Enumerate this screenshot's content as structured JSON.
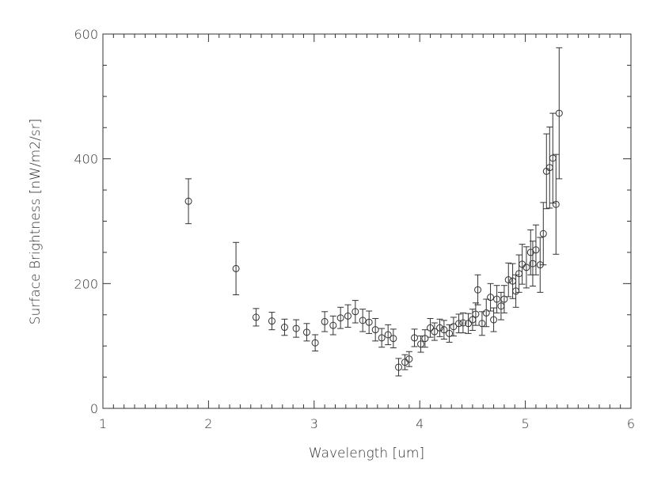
{
  "chart_data": {
    "type": "scatter",
    "title": "",
    "xlabel": "Wavelength [um]",
    "ylabel": "Surface Brightness [nW/m2/sr]",
    "xlim": [
      1,
      6
    ],
    "ylim": [
      0,
      600
    ],
    "xticks": [
      "1",
      "2",
      "3",
      "4",
      "5",
      "6"
    ],
    "yticks": [
      "0",
      "200",
      "400",
      "600"
    ],
    "grid": false,
    "marker": "open-circle",
    "error_bars": true,
    "color": "#333333",
    "points": [
      {
        "x": 1.81,
        "y": 332,
        "err": 36
      },
      {
        "x": 2.26,
        "y": 224,
        "err": 42
      },
      {
        "x": 2.45,
        "y": 146,
        "err": 14
      },
      {
        "x": 2.6,
        "y": 140,
        "err": 14
      },
      {
        "x": 2.72,
        "y": 130,
        "err": 13
      },
      {
        "x": 2.83,
        "y": 128,
        "err": 14
      },
      {
        "x": 2.93,
        "y": 122,
        "err": 14
      },
      {
        "x": 3.01,
        "y": 105,
        "err": 13
      },
      {
        "x": 3.1,
        "y": 139,
        "err": 16
      },
      {
        "x": 3.18,
        "y": 133,
        "err": 15
      },
      {
        "x": 3.25,
        "y": 145,
        "err": 17
      },
      {
        "x": 3.32,
        "y": 148,
        "err": 18
      },
      {
        "x": 3.39,
        "y": 155,
        "err": 18
      },
      {
        "x": 3.46,
        "y": 141,
        "err": 18
      },
      {
        "x": 3.52,
        "y": 138,
        "err": 18
      },
      {
        "x": 3.58,
        "y": 126,
        "err": 18
      },
      {
        "x": 3.64,
        "y": 113,
        "err": 15
      },
      {
        "x": 3.7,
        "y": 118,
        "err": 16
      },
      {
        "x": 3.75,
        "y": 112,
        "err": 15
      },
      {
        "x": 3.8,
        "y": 66,
        "err": 14
      },
      {
        "x": 3.86,
        "y": 74,
        "err": 12
      },
      {
        "x": 3.9,
        "y": 79,
        "err": 12
      },
      {
        "x": 3.95,
        "y": 113,
        "err": 14
      },
      {
        "x": 4.01,
        "y": 103,
        "err": 13
      },
      {
        "x": 4.05,
        "y": 112,
        "err": 14
      },
      {
        "x": 4.1,
        "y": 129,
        "err": 15
      },
      {
        "x": 4.14,
        "y": 123,
        "err": 14
      },
      {
        "x": 4.19,
        "y": 129,
        "err": 14
      },
      {
        "x": 4.23,
        "y": 126,
        "err": 15
      },
      {
        "x": 4.28,
        "y": 120,
        "err": 14
      },
      {
        "x": 4.32,
        "y": 131,
        "err": 15
      },
      {
        "x": 4.37,
        "y": 136,
        "err": 15
      },
      {
        "x": 4.41,
        "y": 137,
        "err": 16
      },
      {
        "x": 4.46,
        "y": 136,
        "err": 16
      },
      {
        "x": 4.5,
        "y": 142,
        "err": 17
      },
      {
        "x": 4.53,
        "y": 151,
        "err": 18
      },
      {
        "x": 4.55,
        "y": 190,
        "err": 24
      },
      {
        "x": 4.59,
        "y": 136,
        "err": 19
      },
      {
        "x": 4.63,
        "y": 153,
        "err": 22
      },
      {
        "x": 4.67,
        "y": 178,
        "err": 22
      },
      {
        "x": 4.7,
        "y": 142,
        "err": 19
      },
      {
        "x": 4.73,
        "y": 175,
        "err": 22
      },
      {
        "x": 4.77,
        "y": 164,
        "err": 22
      },
      {
        "x": 4.8,
        "y": 175,
        "err": 22
      },
      {
        "x": 4.84,
        "y": 206,
        "err": 27
      },
      {
        "x": 4.88,
        "y": 204,
        "err": 28
      },
      {
        "x": 4.91,
        "y": 188,
        "err": 26
      },
      {
        "x": 4.94,
        "y": 216,
        "err": 30
      },
      {
        "x": 4.97,
        "y": 231,
        "err": 32
      },
      {
        "x": 5.01,
        "y": 226,
        "err": 33
      },
      {
        "x": 5.05,
        "y": 250,
        "err": 36
      },
      {
        "x": 5.07,
        "y": 232,
        "err": 36
      },
      {
        "x": 5.1,
        "y": 254,
        "err": 40
      },
      {
        "x": 5.14,
        "y": 230,
        "err": 44
      },
      {
        "x": 5.17,
        "y": 280,
        "err": 50
      },
      {
        "x": 5.2,
        "y": 380,
        "err": 60
      },
      {
        "x": 5.23,
        "y": 386,
        "err": 65
      },
      {
        "x": 5.26,
        "y": 401,
        "err": 72
      },
      {
        "x": 5.29,
        "y": 327,
        "err": 80
      },
      {
        "x": 5.32,
        "y": 473,
        "err": 105
      }
    ]
  }
}
